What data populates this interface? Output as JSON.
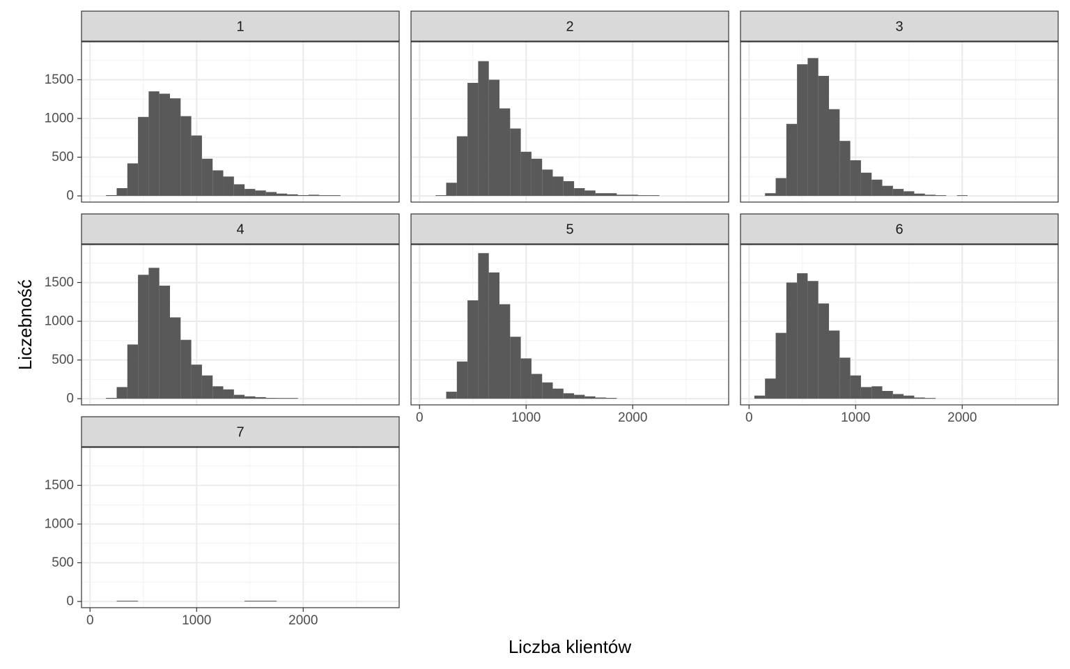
{
  "chart_data": {
    "type": "bar",
    "facet_type": "histogram",
    "xlabel": "Liczba klientów",
    "ylabel": "Liczebność",
    "xlim": [
      -80,
      2900
    ],
    "ylim": [
      -80,
      1990
    ],
    "x_ticks": [
      0,
      1000,
      2000
    ],
    "y_ticks": [
      0,
      500,
      1000,
      1500
    ],
    "bin_width": 100,
    "bar_color": "#595959",
    "strip_color": "#d9d9d9",
    "grid": true,
    "facets": [
      {
        "label": "1",
        "bins": [
          {
            "x0": 150,
            "x1": 250,
            "count": 10
          },
          {
            "x0": 250,
            "x1": 350,
            "count": 100
          },
          {
            "x0": 350,
            "x1": 450,
            "count": 420
          },
          {
            "x0": 450,
            "x1": 550,
            "count": 1020
          },
          {
            "x0": 550,
            "x1": 650,
            "count": 1350
          },
          {
            "x0": 650,
            "x1": 750,
            "count": 1320
          },
          {
            "x0": 750,
            "x1": 850,
            "count": 1260
          },
          {
            "x0": 850,
            "x1": 950,
            "count": 1030
          },
          {
            "x0": 950,
            "x1": 1050,
            "count": 780
          },
          {
            "x0": 1050,
            "x1": 1150,
            "count": 480
          },
          {
            "x0": 1150,
            "x1": 1250,
            "count": 330
          },
          {
            "x0": 1250,
            "x1": 1350,
            "count": 250
          },
          {
            "x0": 1350,
            "x1": 1450,
            "count": 150
          },
          {
            "x0": 1450,
            "x1": 1550,
            "count": 90
          },
          {
            "x0": 1550,
            "x1": 1650,
            "count": 70
          },
          {
            "x0": 1650,
            "x1": 1750,
            "count": 50
          },
          {
            "x0": 1750,
            "x1": 1850,
            "count": 30
          },
          {
            "x0": 1850,
            "x1": 1950,
            "count": 20
          },
          {
            "x0": 1950,
            "x1": 2050,
            "count": 10
          },
          {
            "x0": 2050,
            "x1": 2150,
            "count": 15
          },
          {
            "x0": 2150,
            "x1": 2250,
            "count": 8
          },
          {
            "x0": 2250,
            "x1": 2350,
            "count": 8
          }
        ]
      },
      {
        "label": "2",
        "bins": [
          {
            "x0": 150,
            "x1": 250,
            "count": 5
          },
          {
            "x0": 250,
            "x1": 350,
            "count": 170
          },
          {
            "x0": 350,
            "x1": 450,
            "count": 770
          },
          {
            "x0": 450,
            "x1": 550,
            "count": 1460
          },
          {
            "x0": 550,
            "x1": 650,
            "count": 1740
          },
          {
            "x0": 650,
            "x1": 750,
            "count": 1500
          },
          {
            "x0": 750,
            "x1": 850,
            "count": 1130
          },
          {
            "x0": 850,
            "x1": 950,
            "count": 870
          },
          {
            "x0": 950,
            "x1": 1050,
            "count": 570
          },
          {
            "x0": 1050,
            "x1": 1150,
            "count": 480
          },
          {
            "x0": 1150,
            "x1": 1250,
            "count": 340
          },
          {
            "x0": 1250,
            "x1": 1350,
            "count": 250
          },
          {
            "x0": 1350,
            "x1": 1450,
            "count": 190
          },
          {
            "x0": 1450,
            "x1": 1550,
            "count": 100
          },
          {
            "x0": 1550,
            "x1": 1650,
            "count": 70
          },
          {
            "x0": 1650,
            "x1": 1750,
            "count": 35
          },
          {
            "x0": 1750,
            "x1": 1850,
            "count": 35
          },
          {
            "x0": 1850,
            "x1": 1950,
            "count": 15
          },
          {
            "x0": 1950,
            "x1": 2050,
            "count": 15
          },
          {
            "x0": 2050,
            "x1": 2150,
            "count": 8
          },
          {
            "x0": 2150,
            "x1": 2250,
            "count": 8
          }
        ]
      },
      {
        "label": "3",
        "bins": [
          {
            "x0": 150,
            "x1": 250,
            "count": 35
          },
          {
            "x0": 250,
            "x1": 350,
            "count": 230
          },
          {
            "x0": 350,
            "x1": 450,
            "count": 930
          },
          {
            "x0": 450,
            "x1": 550,
            "count": 1700
          },
          {
            "x0": 550,
            "x1": 650,
            "count": 1780
          },
          {
            "x0": 650,
            "x1": 750,
            "count": 1550
          },
          {
            "x0": 750,
            "x1": 850,
            "count": 1120
          },
          {
            "x0": 850,
            "x1": 950,
            "count": 710
          },
          {
            "x0": 950,
            "x1": 1050,
            "count": 460
          },
          {
            "x0": 1050,
            "x1": 1150,
            "count": 300
          },
          {
            "x0": 1150,
            "x1": 1250,
            "count": 210
          },
          {
            "x0": 1250,
            "x1": 1350,
            "count": 130
          },
          {
            "x0": 1350,
            "x1": 1450,
            "count": 90
          },
          {
            "x0": 1450,
            "x1": 1550,
            "count": 60
          },
          {
            "x0": 1550,
            "x1": 1650,
            "count": 30
          },
          {
            "x0": 1650,
            "x1": 1750,
            "count": 15
          },
          {
            "x0": 1750,
            "x1": 1850,
            "count": 8
          },
          {
            "x0": 1950,
            "x1": 2050,
            "count": 5
          }
        ]
      },
      {
        "label": "4",
        "bins": [
          {
            "x0": 150,
            "x1": 250,
            "count": 10
          },
          {
            "x0": 250,
            "x1": 350,
            "count": 150
          },
          {
            "x0": 350,
            "x1": 450,
            "count": 700
          },
          {
            "x0": 450,
            "x1": 550,
            "count": 1600
          },
          {
            "x0": 550,
            "x1": 650,
            "count": 1690
          },
          {
            "x0": 650,
            "x1": 750,
            "count": 1460
          },
          {
            "x0": 750,
            "x1": 850,
            "count": 1050
          },
          {
            "x0": 850,
            "x1": 950,
            "count": 760
          },
          {
            "x0": 950,
            "x1": 1050,
            "count": 440
          },
          {
            "x0": 1050,
            "x1": 1150,
            "count": 300
          },
          {
            "x0": 1150,
            "x1": 1250,
            "count": 160
          },
          {
            "x0": 1250,
            "x1": 1350,
            "count": 120
          },
          {
            "x0": 1350,
            "x1": 1450,
            "count": 50
          },
          {
            "x0": 1450,
            "x1": 1550,
            "count": 30
          },
          {
            "x0": 1550,
            "x1": 1650,
            "count": 20
          },
          {
            "x0": 1650,
            "x1": 1750,
            "count": 10
          },
          {
            "x0": 1750,
            "x1": 1850,
            "count": 5
          },
          {
            "x0": 1850,
            "x1": 1950,
            "count": 5
          }
        ]
      },
      {
        "label": "5",
        "bins": [
          {
            "x0": 250,
            "x1": 350,
            "count": 90
          },
          {
            "x0": 350,
            "x1": 450,
            "count": 480
          },
          {
            "x0": 450,
            "x1": 550,
            "count": 1270
          },
          {
            "x0": 550,
            "x1": 650,
            "count": 1880
          },
          {
            "x0": 650,
            "x1": 750,
            "count": 1630
          },
          {
            "x0": 750,
            "x1": 850,
            "count": 1220
          },
          {
            "x0": 850,
            "x1": 950,
            "count": 800
          },
          {
            "x0": 950,
            "x1": 1050,
            "count": 520
          },
          {
            "x0": 1050,
            "x1": 1150,
            "count": 320
          },
          {
            "x0": 1150,
            "x1": 1250,
            "count": 210
          },
          {
            "x0": 1250,
            "x1": 1350,
            "count": 130
          },
          {
            "x0": 1350,
            "x1": 1450,
            "count": 70
          },
          {
            "x0": 1450,
            "x1": 1550,
            "count": 50
          },
          {
            "x0": 1550,
            "x1": 1650,
            "count": 30
          },
          {
            "x0": 1650,
            "x1": 1750,
            "count": 15
          },
          {
            "x0": 1750,
            "x1": 1850,
            "count": 10
          }
        ]
      },
      {
        "label": "6",
        "bins": [
          {
            "x0": 50,
            "x1": 150,
            "count": 40
          },
          {
            "x0": 150,
            "x1": 250,
            "count": 260
          },
          {
            "x0": 250,
            "x1": 350,
            "count": 850
          },
          {
            "x0": 350,
            "x1": 450,
            "count": 1500
          },
          {
            "x0": 450,
            "x1": 550,
            "count": 1620
          },
          {
            "x0": 550,
            "x1": 650,
            "count": 1520
          },
          {
            "x0": 650,
            "x1": 750,
            "count": 1230
          },
          {
            "x0": 750,
            "x1": 850,
            "count": 880
          },
          {
            "x0": 850,
            "x1": 950,
            "count": 530
          },
          {
            "x0": 950,
            "x1": 1050,
            "count": 300
          },
          {
            "x0": 1050,
            "x1": 1150,
            "count": 150
          },
          {
            "x0": 1150,
            "x1": 1250,
            "count": 160
          },
          {
            "x0": 1250,
            "x1": 1350,
            "count": 100
          },
          {
            "x0": 1350,
            "x1": 1450,
            "count": 60
          },
          {
            "x0": 1450,
            "x1": 1550,
            "count": 40
          },
          {
            "x0": 1550,
            "x1": 1650,
            "count": 15
          },
          {
            "x0": 1650,
            "x1": 1750,
            "count": 5
          }
        ]
      },
      {
        "label": "7",
        "bins": [
          {
            "x0": 250,
            "x1": 350,
            "count": 5
          },
          {
            "x0": 350,
            "x1": 450,
            "count": 5
          },
          {
            "x0": 1450,
            "x1": 1550,
            "count": 5
          },
          {
            "x0": 1550,
            "x1": 1650,
            "count": 5
          },
          {
            "x0": 1650,
            "x1": 1750,
            "count": 5
          }
        ]
      }
    ]
  }
}
